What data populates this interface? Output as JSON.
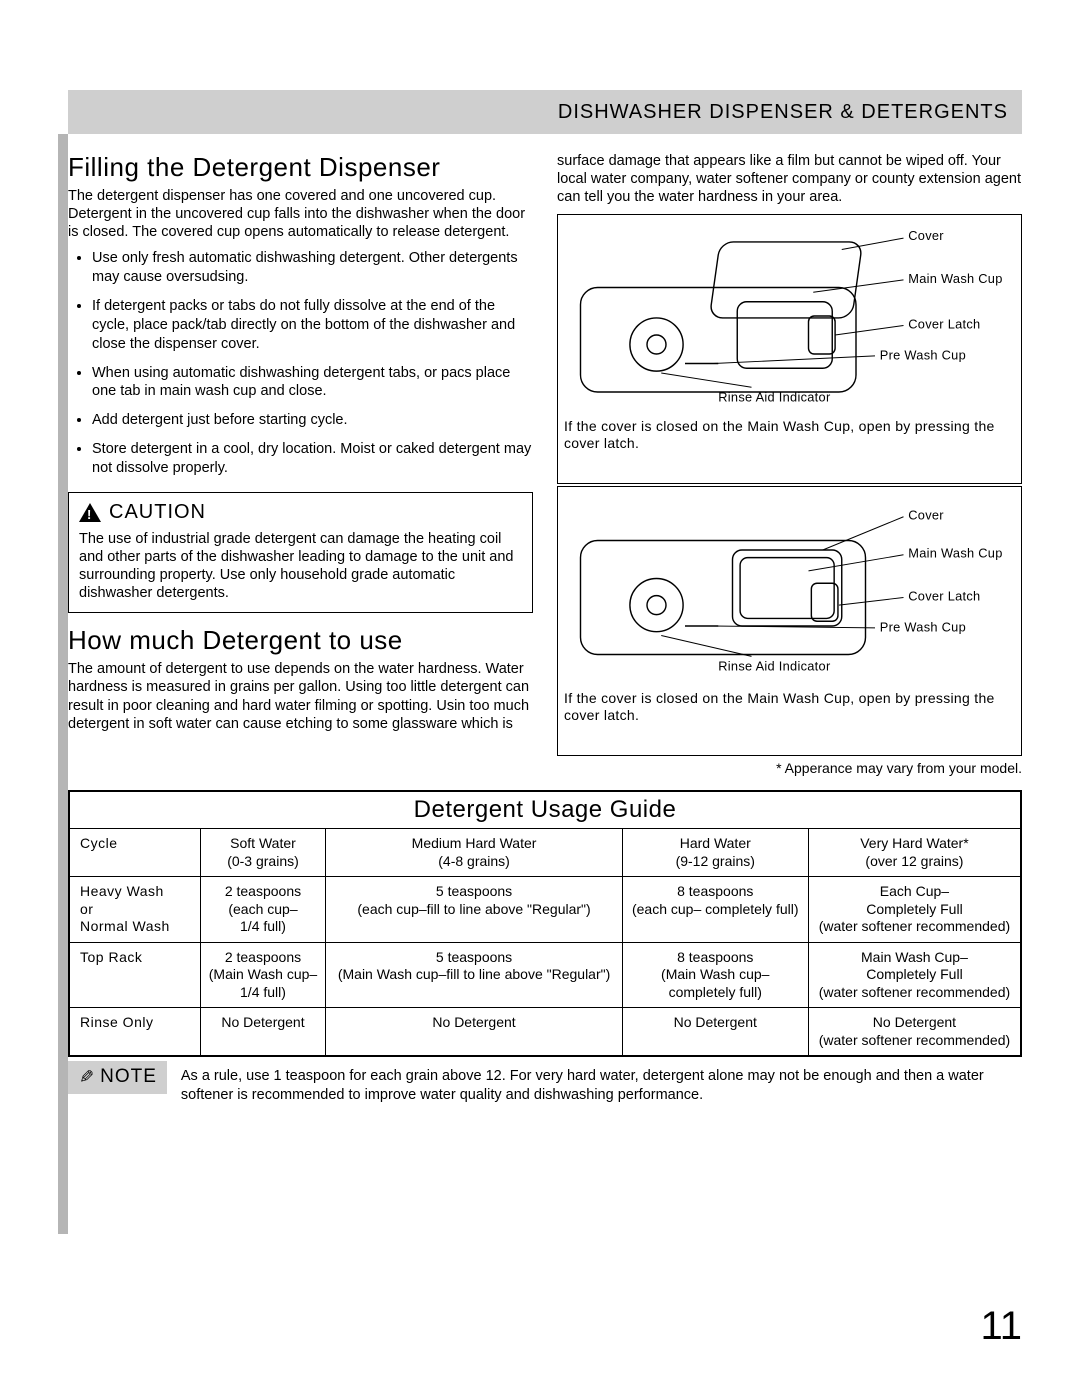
{
  "header": {
    "title": "DISHWASHER DISPENSER & DETERGENTS"
  },
  "left": {
    "h1": "Filling the Detergent Dispenser",
    "p1": "The detergent dispenser has one covered and one uncovered cup. Detergent in the uncovered cup falls into the dishwasher when the door is closed. The covered cup opens automatically to release detergent.",
    "bullets": [
      "Use only fresh automatic dishwashing detergent. Other detergents may cause oversudsing.",
      "If detergent packs or tabs do not fully dissolve at the end of the cycle, place pack/tab directly on the bottom of the dishwasher and close the dispenser cover.",
      "When using automatic dishwashing detergent tabs,  or pacs place one tab in main wash cup and close.",
      "Add detergent just before starting cycle.",
      "Store detergent in a cool, dry location. Moist or caked detergent may not dissolve properly."
    ],
    "caution_title": "CAUTION",
    "caution_body": "The use of industrial grade detergent can damage the heating coil and other parts of the dishwasher leading to damage to the unit and surrounding property.  Use only household grade automatic dishwasher detergents.",
    "h2": "How much Detergent to use",
    "p2": "The amount of detergent to use depends on the water hardness. Water hardness is measured in grains per gallon. Using too little detergent can result in poor cleaning and hard water filming or spotting.  Usin too much detergent in soft water can cause etching to some glassware which is"
  },
  "right": {
    "p0": "surface damage that appears like a film but cannot be wiped off. Your local water company, water softener company or county extension agent can tell you the water hardness in your area.",
    "diag_labels": {
      "cover": "Cover",
      "main": "Main Wash Cup",
      "latch": "Cover Latch",
      "pre": "Pre Wash Cup",
      "rinse": "Rinse Aid Indicator"
    },
    "diag_caption": "If the cover is closed on the Main Wash Cup, open by pressing the cover latch.",
    "footnote": "* Apperance may vary from your model."
  },
  "guide": {
    "title": "Detergent Usage Guide",
    "head": [
      "Cycle",
      "Soft Water\n(0-3 grains)",
      "Medium Hard Water\n(4-8 grains)",
      "Hard Water\n(9-12 grains)",
      "Very Hard Water*\n(over 12 grains)"
    ],
    "rows": [
      [
        "Heavy Wash\nor\nNormal Wash",
        "2 teaspoons\n(each cup–\n1/4 full)",
        "5 teaspoons\n(each cup–fill to line above \"Regular\")",
        "8 teaspoons\n(each cup– completely full)",
        "Each Cup–\nCompletely Full\n(water softener recommended)"
      ],
      [
        "Top Rack",
        "2 teaspoons\n(Main Wash cup–\n1/4 full)",
        "5 teaspoons\n(Main Wash cup–fill to line above \"Regular\")",
        "8 teaspoons\n(Main Wash cup–\ncompletely full)",
        "Main Wash Cup–\nCompletely Full\n(water softener recommended)"
      ],
      [
        "Rinse Only",
        "No Detergent",
        "No Detergent",
        "No Detergent",
        "No Detergent\n(water softener recommended)"
      ]
    ]
  },
  "note": {
    "label": "NOTE",
    "text": "As a rule, use 1 teaspoon for each grain above 12. For very hard water, detergent alone may not be enough and then a water softener is recommended to improve water quality and dishwashing performance."
  },
  "page": "11"
}
